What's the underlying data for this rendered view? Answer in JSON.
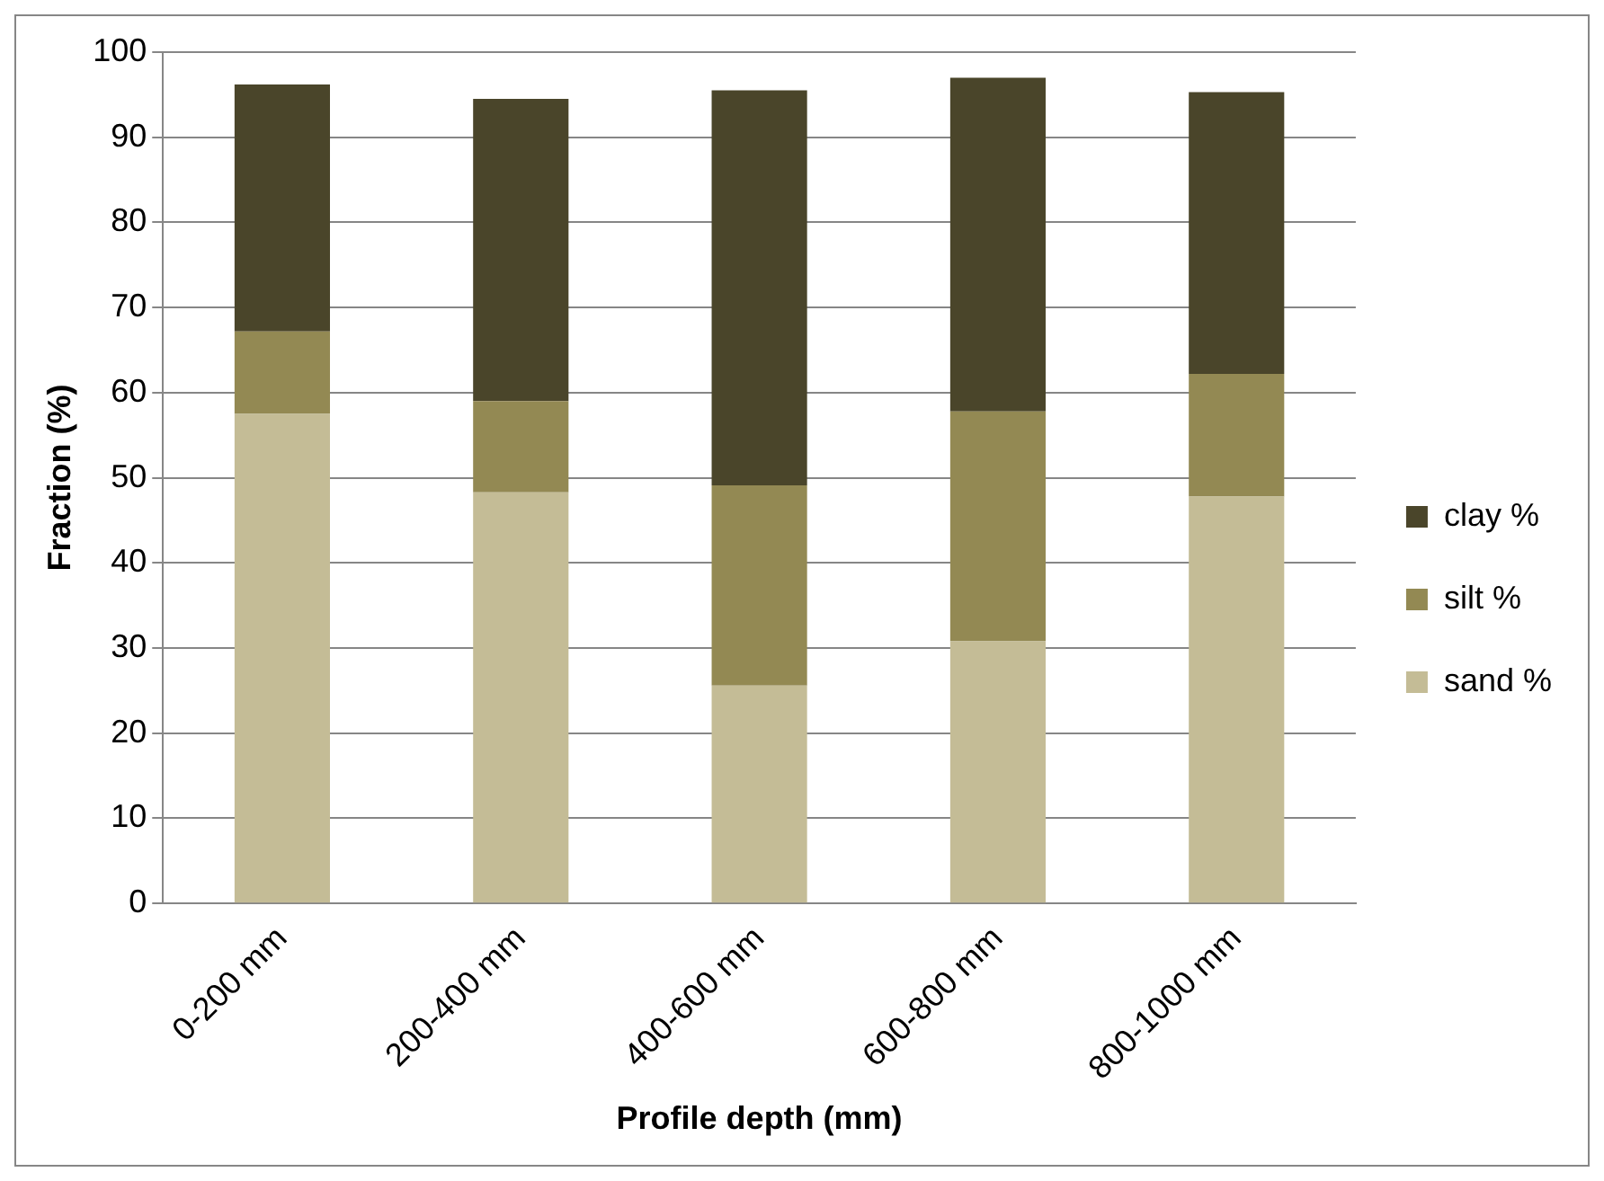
{
  "chart_data": {
    "type": "bar",
    "stacked": true,
    "xlabel": "Profile depth (mm)",
    "ylabel": "Fraction (%)",
    "categories": [
      "0-200 mm",
      "200-400 mm",
      "400-600 mm",
      "600-800 mm",
      "800-1000 mm"
    ],
    "series": [
      {
        "name": "sand %",
        "color": "#c4bc96",
        "values": [
          57.5,
          48.3,
          25.6,
          30.8,
          47.8
        ]
      },
      {
        "name": "silt %",
        "color": "#938953",
        "values": [
          9.7,
          10.7,
          23.5,
          27.0,
          14.4
        ]
      },
      {
        "name": "clay %",
        "color": "#4a452a",
        "values": [
          29.0,
          35.5,
          46.4,
          39.2,
          33.1
        ]
      }
    ],
    "ylim": [
      0,
      100
    ],
    "yticks": [
      0,
      10,
      20,
      30,
      40,
      50,
      60,
      70,
      80,
      90,
      100
    ],
    "grid": "y",
    "legend": "right"
  }
}
